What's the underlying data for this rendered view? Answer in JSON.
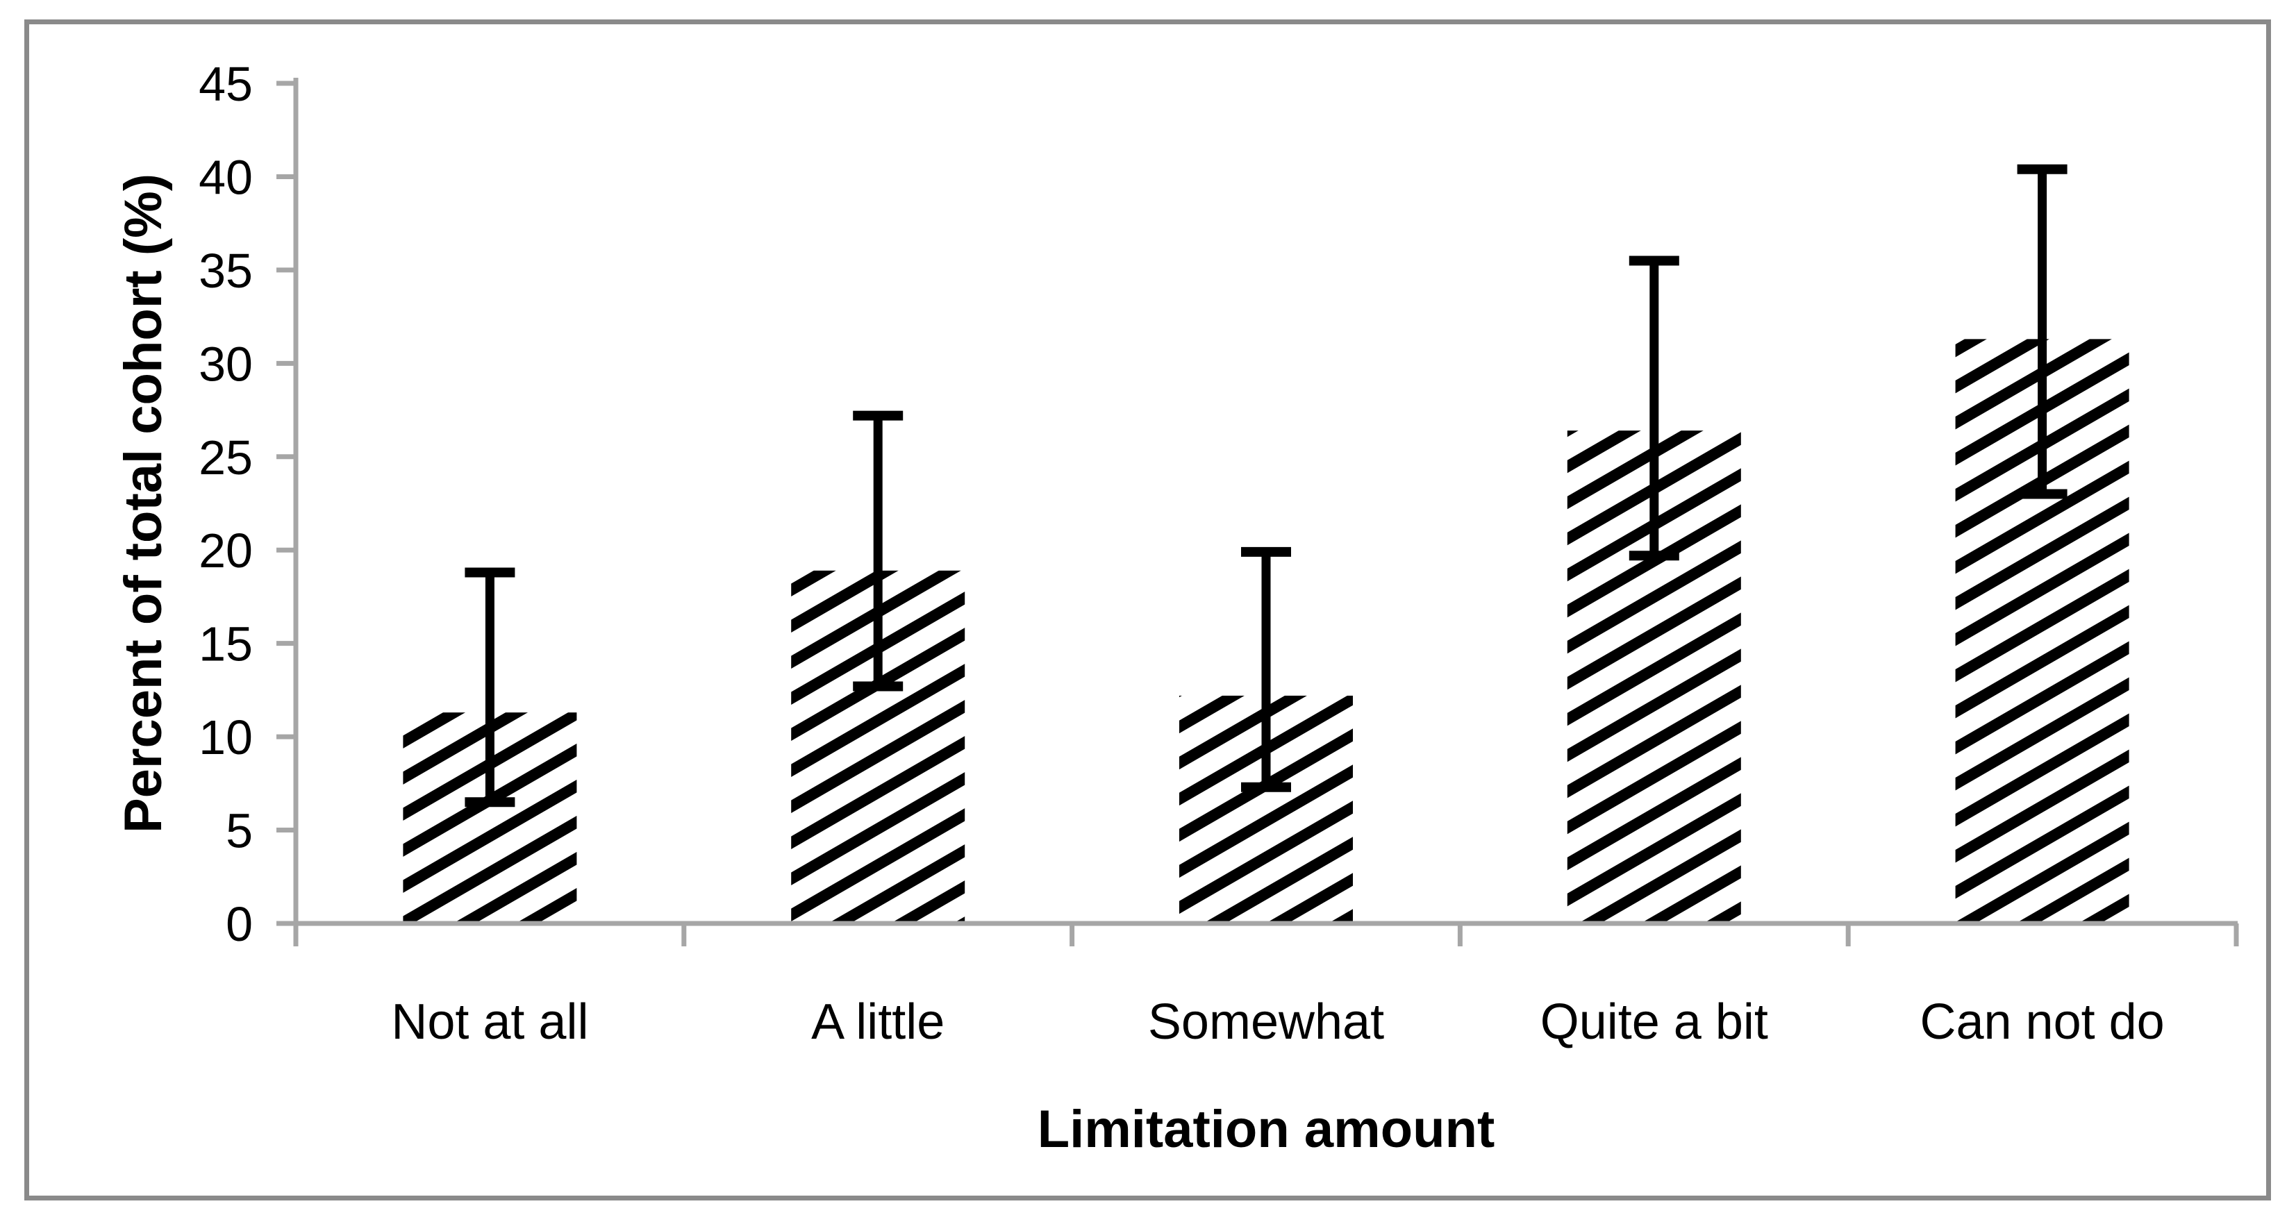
{
  "chart_data": {
    "type": "bar",
    "title": "",
    "xlabel": "Limitation amount",
    "ylabel": "Percent of total cohort (%)",
    "categories": [
      "Not at all",
      "A little",
      "Somewhat",
      "Quite a bit",
      "Can not do"
    ],
    "values": [
      11.3,
      18.9,
      12.2,
      26.4,
      31.3
    ],
    "error_low": [
      6.5,
      12.7,
      7.3,
      19.7,
      23.0
    ],
    "error_high": [
      18.8,
      27.2,
      19.9,
      35.5,
      40.4
    ],
    "ylim": [
      0,
      45
    ],
    "ytick_step": 5,
    "ytick_labels": [
      "0",
      "5",
      "10",
      "15",
      "20",
      "25",
      "30",
      "35",
      "40",
      "45"
    ],
    "grid": false,
    "legend": null,
    "bar_style": {
      "fill": "diagonal-hatch",
      "hatch_color": "#000000",
      "background": "#ffffff"
    },
    "colors": {
      "axis": "#a6a6a6",
      "border": "#8a8a8a",
      "text": "#000000",
      "error_bar": "#000000"
    }
  }
}
